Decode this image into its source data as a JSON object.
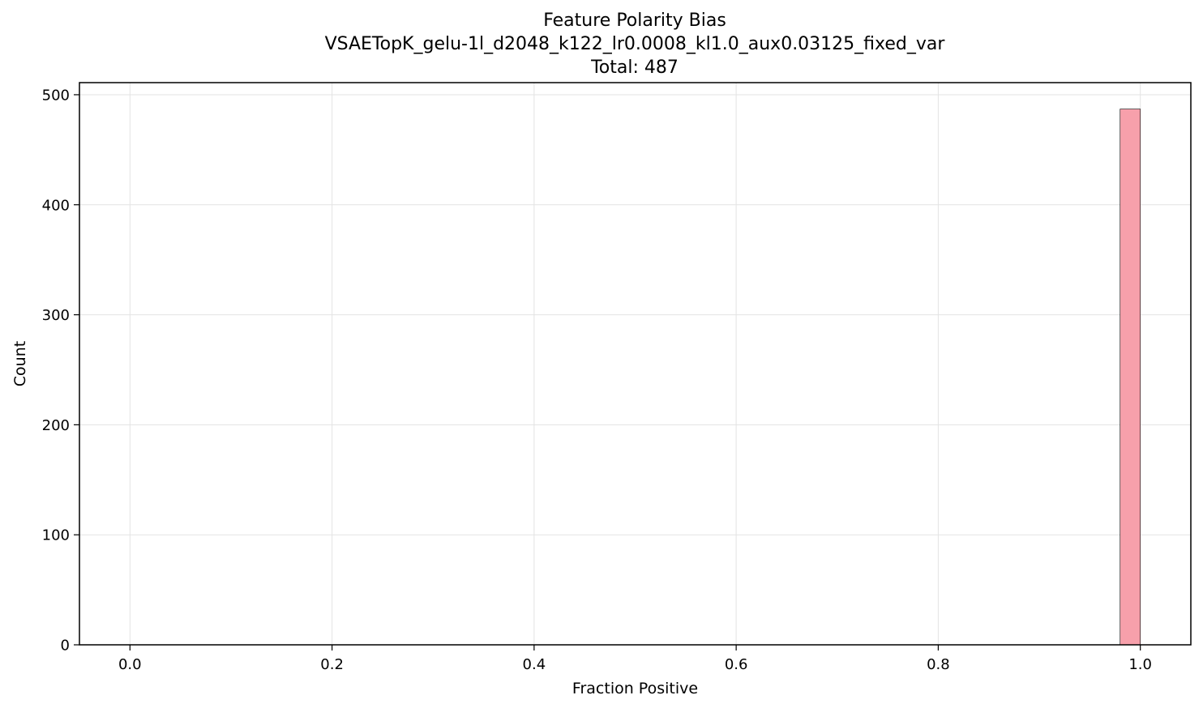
{
  "chart_data": {
    "type": "bar",
    "title_lines": [
      "Feature Polarity Bias",
      "VSAETopK_gelu-1l_d2048_k122_lr0.0008_kl1.0_aux0.03125_fixed_var",
      "Total: 487"
    ],
    "xlabel": "Fraction Positive",
    "ylabel": "Count",
    "xlim": [
      -0.05,
      1.05
    ],
    "ylim": [
      0,
      511
    ],
    "xticks": [
      0.0,
      0.2,
      0.4,
      0.6,
      0.8,
      1.0
    ],
    "xtick_labels": [
      "0.0",
      "0.2",
      "0.4",
      "0.6",
      "0.8",
      "1.0"
    ],
    "yticks": [
      0,
      100,
      200,
      300,
      400,
      500
    ],
    "ytick_labels": [
      "0",
      "100",
      "200",
      "300",
      "400",
      "500"
    ],
    "grid": true,
    "bars": [
      {
        "x_start": 0.98,
        "x_end": 1.0,
        "count": 487
      }
    ],
    "bar_color": "#f7a0ab",
    "bar_edge_color": "#000000"
  }
}
